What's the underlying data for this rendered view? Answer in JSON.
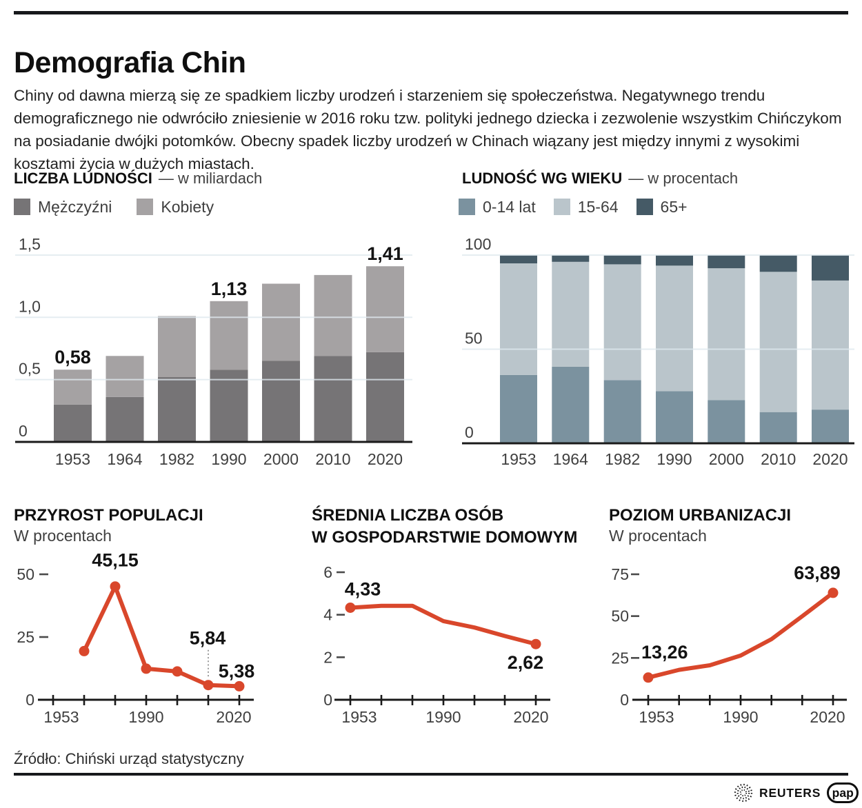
{
  "page": {
    "title": "Demografia Chin",
    "intro": "Chiny od dawna mierzą się ze spadkiem liczby urodzeń i starzeniem się społeczeństwa. Negatywnego trendu demograficznego nie odwróciło zniesienie w 2016 roku tzw. polityki jednego dziecka i zezwolenie wszystkim Chińczykom na posiadanie dwójki potomków. Obecny spadek liczby urodzeń w Chinach wiązany jest między innymi z wysokimi kosztami życia w dużych miastach.",
    "source": "Źródło: Chiński urząd statystyczny",
    "logos": {
      "reuters": "REUTERS",
      "pap": "pap"
    }
  },
  "colors": {
    "accent_red": "#d9472b",
    "men": "#767476",
    "women": "#a5a2a3",
    "age_0_14": "#7b929f",
    "age_15_64": "#bac5cb",
    "age_65_plus": "#455a66",
    "grid": "#dfe9ee",
    "axis": "#1a1a1a",
    "muted_text": "#3f3f3f",
    "label_text": "#131313",
    "leader": "#9c9c9c"
  },
  "chart_data": [
    {
      "id": "population-total",
      "type": "bar",
      "stacked": true,
      "title": "LICZBA LUDNOŚCI",
      "subtitle": "— w miliardach",
      "categories": [
        "1953",
        "1964",
        "1982",
        "1990",
        "2000",
        "2010",
        "2020"
      ],
      "series": [
        {
          "name": "Mężczyźni",
          "color": "#767476",
          "values": [
            0.3,
            0.36,
            0.52,
            0.58,
            0.65,
            0.69,
            0.72
          ]
        },
        {
          "name": "Kobiety",
          "color": "#a5a2a3",
          "values": [
            0.28,
            0.33,
            0.49,
            0.55,
            0.62,
            0.65,
            0.69
          ]
        }
      ],
      "totals": [
        0.58,
        0.69,
        1.01,
        1.13,
        1.27,
        1.34,
        1.41
      ],
      "value_labels": [
        {
          "index": 0,
          "text": "0,58"
        },
        {
          "index": 3,
          "text": "1,13"
        },
        {
          "index": 6,
          "text": "1,41"
        }
      ],
      "yticks": [
        {
          "value": 0,
          "label": "0"
        },
        {
          "value": 0.5,
          "label": "0,5"
        },
        {
          "value": 1.0,
          "label": "1,0"
        },
        {
          "value": 1.5,
          "label": "1,5"
        }
      ],
      "ylim": [
        0,
        1.5
      ],
      "grid": true,
      "legend_position": "top"
    },
    {
      "id": "population-by-age",
      "type": "bar",
      "stacked": true,
      "title": "LUDNOŚĆ WG WIEKU",
      "subtitle": "— w procentach",
      "categories": [
        "1953",
        "1964",
        "1982",
        "1990",
        "2000",
        "2010",
        "2020"
      ],
      "series": [
        {
          "name": "0-14 lat",
          "color": "#7b929f",
          "values": [
            36.3,
            40.7,
            33.6,
            27.7,
            22.9,
            16.6,
            17.9
          ]
        },
        {
          "name": "15-64",
          "color": "#bac5cb",
          "values": [
            59.3,
            55.7,
            61.5,
            66.7,
            70.1,
            74.5,
            68.6
          ]
        },
        {
          "name": "65+",
          "color": "#455a66",
          "values": [
            4.4,
            3.6,
            4.9,
            5.6,
            7.0,
            8.9,
            13.5
          ]
        }
      ],
      "value_labels": [],
      "yticks": [
        {
          "value": 0,
          "label": "0"
        },
        {
          "value": 50,
          "label": "50"
        },
        {
          "value": 100,
          "label": "100"
        }
      ],
      "ylim": [
        0,
        100
      ],
      "grid": true,
      "legend_position": "top"
    },
    {
      "id": "population-growth",
      "type": "line",
      "title": "PRZYROST POPULACJI",
      "subtitle": "W procentach",
      "categories": [
        "1953",
        "1964",
        "1982",
        "1990",
        "2000",
        "2010",
        "2020"
      ],
      "x_tick_labels": [
        "1953",
        "",
        "",
        "1990",
        "",
        "",
        "2020"
      ],
      "values": [
        null,
        19.4,
        45.15,
        12.4,
        11.3,
        5.84,
        5.38
      ],
      "markers": "all",
      "value_labels": [
        {
          "index": 2,
          "text": "45,15"
        },
        {
          "index": 5,
          "text": "5,84",
          "leader": true
        },
        {
          "index": 6,
          "text": "5,38"
        }
      ],
      "yticks": [
        {
          "value": 0,
          "label": "0"
        },
        {
          "value": 25,
          "label": "25"
        },
        {
          "value": 50,
          "label": "50"
        }
      ],
      "ylim": [
        0,
        50
      ],
      "grid": false
    },
    {
      "id": "household-size",
      "type": "line",
      "title": "ŚREDNIA LICZBA OSÓB",
      "title2": "W GOSPODARSTWIE DOMOWYM",
      "categories": [
        "1953",
        "1964",
        "1982",
        "1990",
        "2000",
        "2010",
        "2020"
      ],
      "x_tick_labels": [
        "1953",
        "",
        "",
        "1990",
        "",
        "",
        "2020"
      ],
      "values": [
        4.33,
        4.42,
        4.42,
        3.7,
        3.4,
        3.0,
        2.62
      ],
      "markers": [
        0,
        6
      ],
      "value_labels": [
        {
          "index": 0,
          "text": "4,33"
        },
        {
          "index": 6,
          "text": "2,62"
        }
      ],
      "yticks": [
        {
          "value": 0,
          "label": "0"
        },
        {
          "value": 2,
          "label": "2"
        },
        {
          "value": 4,
          "label": "4"
        },
        {
          "value": 6,
          "label": "6"
        }
      ],
      "ylim": [
        0,
        6
      ],
      "grid": false
    },
    {
      "id": "urbanization-level",
      "type": "line",
      "title": "POZIOM URBANIZACJI",
      "subtitle": "W procentach",
      "categories": [
        "1953",
        "1964",
        "1982",
        "1990",
        "2000",
        "2010",
        "2020"
      ],
      "x_tick_labels": [
        "1953",
        "",
        "",
        "1990",
        "",
        "",
        "2020"
      ],
      "values": [
        13.26,
        17.9,
        20.6,
        26.4,
        36.2,
        49.9,
        63.89
      ],
      "markers": [
        0,
        6
      ],
      "value_labels": [
        {
          "index": 0,
          "text": "13,26"
        },
        {
          "index": 6,
          "text": "63,89"
        }
      ],
      "yticks": [
        {
          "value": 0,
          "label": "0"
        },
        {
          "value": 25,
          "label": "25"
        },
        {
          "value": 50,
          "label": "50"
        },
        {
          "value": 75,
          "label": "75"
        }
      ],
      "ylim": [
        0,
        75
      ],
      "grid": false
    }
  ]
}
